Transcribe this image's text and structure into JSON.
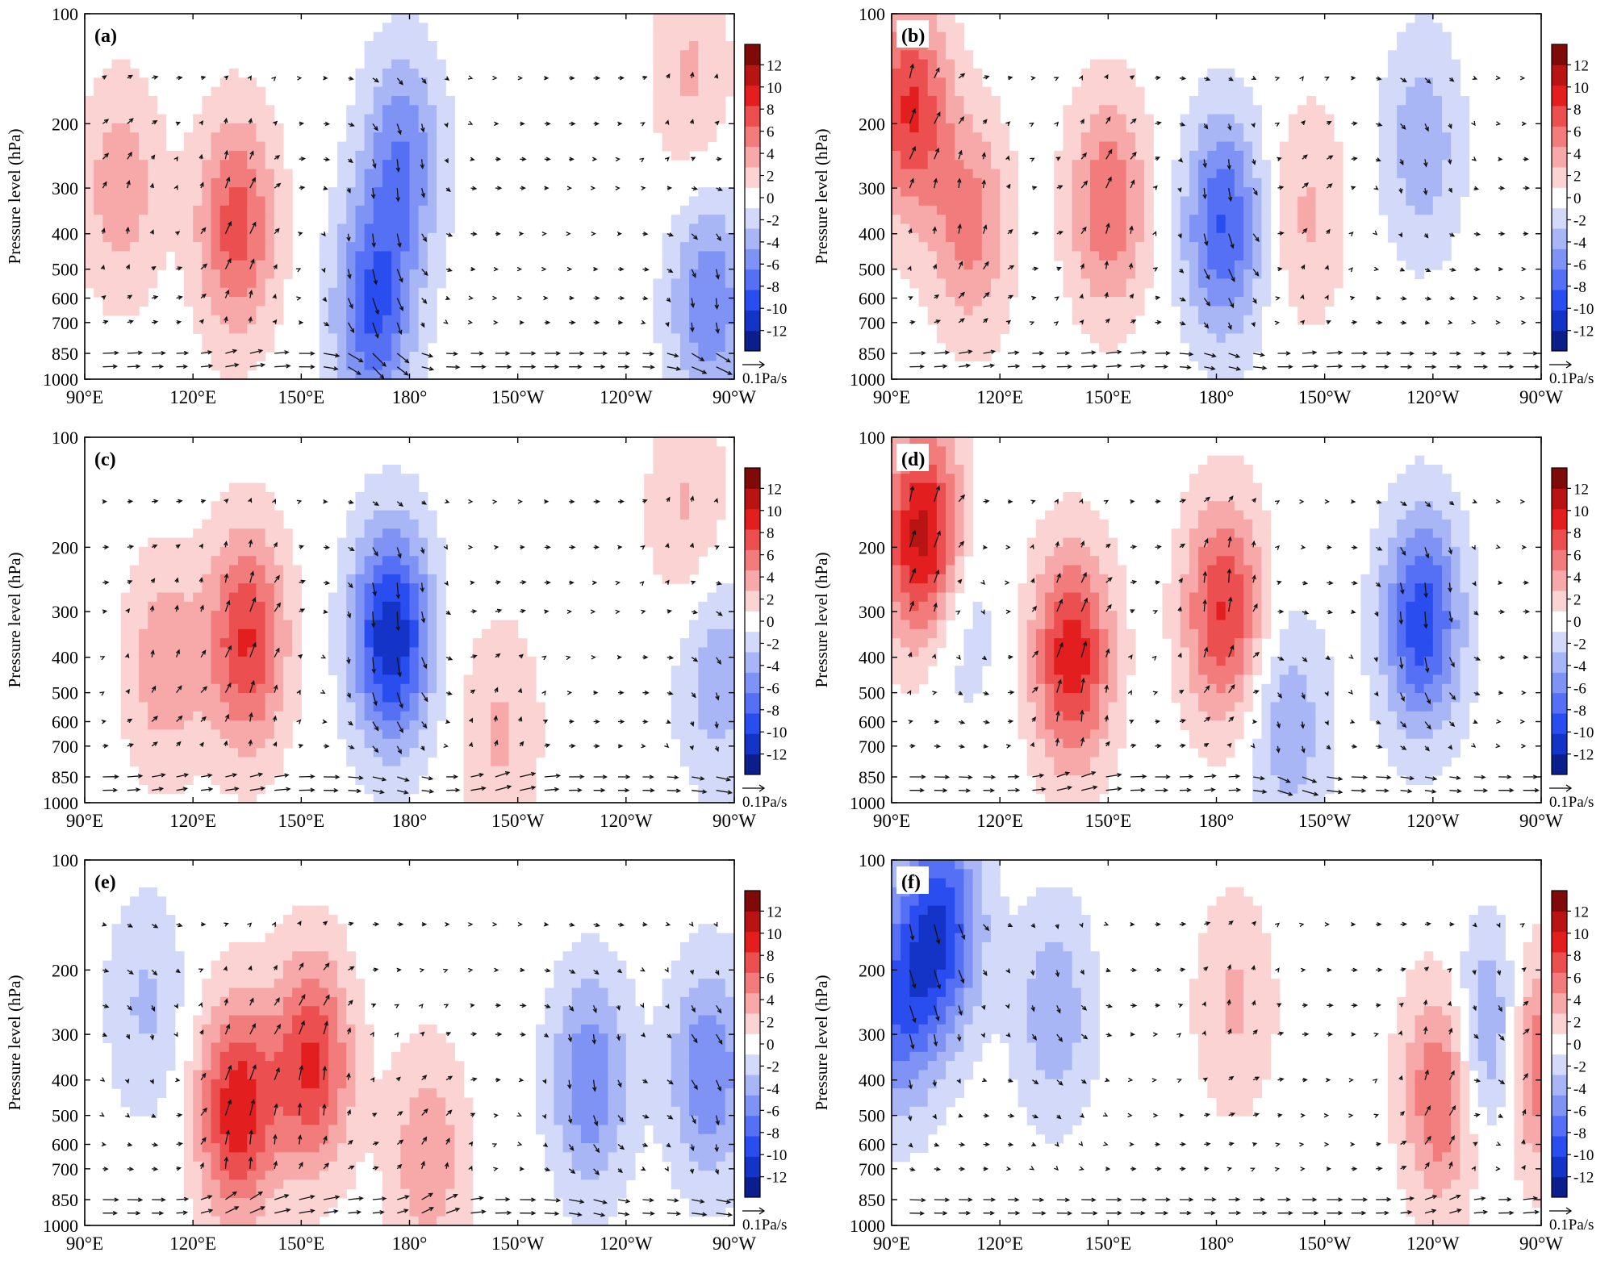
{
  "figure": {
    "ylabel": "Pressure level (hPa)",
    "y_ticks": [
      100,
      200,
      300,
      400,
      500,
      600,
      700,
      850,
      1000
    ],
    "x_ticks": [
      "90°E",
      "120°E",
      "150°E",
      "180°",
      "150°W",
      "120°W",
      "90°W"
    ],
    "colorbar_ticks": [
      12,
      10,
      8,
      6,
      4,
      2,
      0,
      -2,
      -4,
      -6,
      -8,
      -10,
      -12
    ],
    "vector_ref_label": "0.1Pa/s",
    "colors": {
      "negative": [
        "#0b1f8c",
        "#1434c8",
        "#2a4df0",
        "#5570f5",
        "#7f93f5",
        "#a9b6f6",
        "#d2d9f9"
      ],
      "neutral": "#ffffff",
      "positive": [
        "#fbd3d3",
        "#f7a9a9",
        "#f27c7c",
        "#ec4f4f",
        "#e21e1e",
        "#b81414",
        "#7e0a0a"
      ]
    }
  },
  "chart_data": [
    {
      "type": "contour",
      "label": "(a)",
      "xlabel": "",
      "ylabel": "Pressure level (hPa)",
      "xlim": [
        90,
        270
      ],
      "ylim": [
        1000,
        100
      ],
      "clim": [
        -12,
        12
      ],
      "anomaly_centers": [
        {
          "lon": 100,
          "p": 300,
          "value": 4
        },
        {
          "lon": 132,
          "p": 380,
          "value": 7
        },
        {
          "lon": 178,
          "p": 250,
          "value": -6
        },
        {
          "lon": 170,
          "p": 650,
          "value": -8
        },
        {
          "lon": 258,
          "p": 150,
          "value": 3
        },
        {
          "lon": 263,
          "p": 620,
          "value": -6
        }
      ]
    },
    {
      "type": "contour",
      "label": "(b)",
      "xlabel": "",
      "ylabel": "Pressure level (hPa)",
      "xlim": [
        90,
        270
      ],
      "ylim": [
        1000,
        100
      ],
      "clim": [
        -12,
        12
      ],
      "anomaly_centers": [
        {
          "lon": 95,
          "p": 180,
          "value": 8
        },
        {
          "lon": 112,
          "p": 380,
          "value": 5
        },
        {
          "lon": 150,
          "p": 330,
          "value": 6
        },
        {
          "lon": 182,
          "p": 380,
          "value": -8
        },
        {
          "lon": 237,
          "p": 230,
          "value": -4
        },
        {
          "lon": 205,
          "p": 350,
          "value": 3
        }
      ]
    },
    {
      "type": "contour",
      "label": "(c)",
      "xlabel": "",
      "ylabel": "Pressure level (hPa)",
      "xlim": [
        90,
        270
      ],
      "ylim": [
        1000,
        100
      ],
      "clim": [
        -12,
        12
      ],
      "anomaly_centers": [
        {
          "lon": 135,
          "p": 360,
          "value": 8
        },
        {
          "lon": 175,
          "p": 350,
          "value": -11
        },
        {
          "lon": 205,
          "p": 640,
          "value": 3
        },
        {
          "lon": 112,
          "p": 420,
          "value": 4
        },
        {
          "lon": 257,
          "p": 160,
          "value": 3
        },
        {
          "lon": 265,
          "p": 450,
          "value": -4
        }
      ]
    },
    {
      "type": "contour",
      "label": "(d)",
      "xlabel": "",
      "ylabel": "Pressure level (hPa)",
      "xlim": [
        90,
        270
      ],
      "ylim": [
        1000,
        100
      ],
      "clim": [
        -12,
        12
      ],
      "anomaly_centers": [
        {
          "lon": 99,
          "p": 190,
          "value": 11
        },
        {
          "lon": 140,
          "p": 400,
          "value": 9
        },
        {
          "lon": 182,
          "p": 300,
          "value": 8
        },
        {
          "lon": 237,
          "p": 320,
          "value": -9
        },
        {
          "lon": 200,
          "p": 620,
          "value": -4
        },
        {
          "lon": 108,
          "p": 300,
          "value": -3
        }
      ]
    },
    {
      "type": "contour",
      "label": "(e)",
      "xlabel": "",
      "ylabel": "Pressure level (hPa)",
      "xlim": [
        90,
        270
      ],
      "ylim": [
        1000,
        100
      ],
      "clim": [
        -12,
        12
      ],
      "anomaly_centers": [
        {
          "lon": 132,
          "p": 480,
          "value": 9
        },
        {
          "lon": 153,
          "p": 360,
          "value": 8
        },
        {
          "lon": 230,
          "p": 400,
          "value": -6
        },
        {
          "lon": 263,
          "p": 380,
          "value": -6
        },
        {
          "lon": 107,
          "p": 250,
          "value": -3
        },
        {
          "lon": 185,
          "p": 650,
          "value": 4
        }
      ]
    },
    {
      "type": "contour",
      "label": "(f)",
      "xlabel": "",
      "ylabel": "Pressure level (hPa)",
      "xlim": [
        90,
        270
      ],
      "ylim": [
        1000,
        100
      ],
      "clim": [
        -12,
        12
      ],
      "anomaly_centers": [
        {
          "lon": 92,
          "p": 250,
          "value": -7
        },
        {
          "lon": 104,
          "p": 150,
          "value": -9
        },
        {
          "lon": 243,
          "p": 430,
          "value": 7
        },
        {
          "lon": 257,
          "p": 320,
          "value": -8
        },
        {
          "lon": 267,
          "p": 350,
          "value": 8
        },
        {
          "lon": 135,
          "p": 260,
          "value": -4
        },
        {
          "lon": 185,
          "p": 250,
          "value": 3
        }
      ]
    }
  ]
}
